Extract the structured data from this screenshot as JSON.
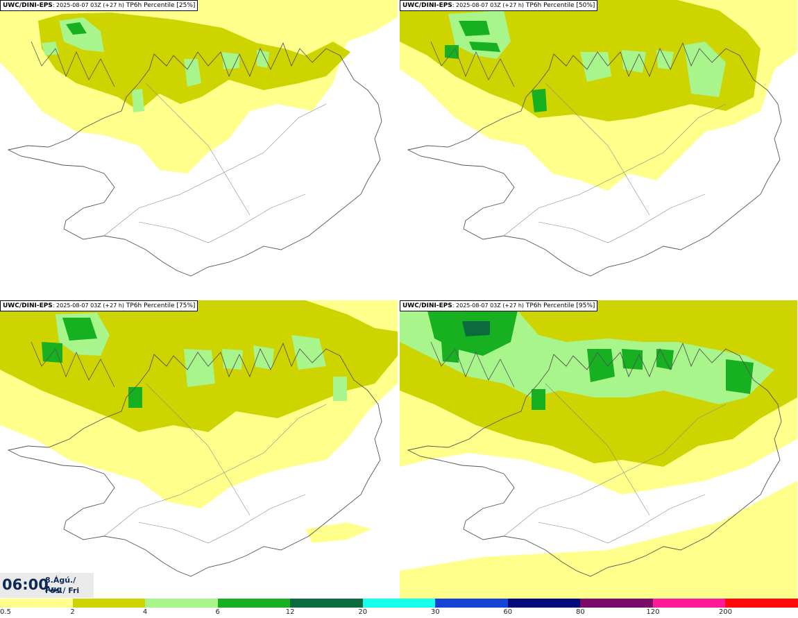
{
  "panels": [
    {
      "source": "UWC/DINI-EPS",
      "run": ": 2025-08-07 03Z (+27 h)",
      "field": "TP6h Percentile [25%]"
    },
    {
      "source": "UWC/DINI-EPS",
      "run": ": 2025-08-07 03Z (+27 h)",
      "field": "TP6h Percentile [50%]"
    },
    {
      "source": "UWC/DINI-EPS",
      "run": ": 2025-08-07 03Z (+27 h)",
      "field": "TP6h Percentile [75%]"
    },
    {
      "source": "UWC/DINI-EPS",
      "run": ": 2025-08-07 03Z (+27 h)",
      "field": "TP6h Percentile [95%]"
    }
  ],
  "valid_time": {
    "time": "06:00",
    "date_line1": "8.Ágú./ Aug",
    "date_line2": "Fös./ Fri"
  },
  "legend": {
    "ticks": [
      "0.5",
      "2",
      "4",
      "6",
      "12",
      "20",
      "30",
      "60",
      "80",
      "120",
      "200"
    ],
    "colors": [
      "#ffff8c",
      "#cdd400",
      "#a8f58c",
      "#16b020",
      "#0b6a3e",
      "#17ffee",
      "#1543d6",
      "#040a7a",
      "#7a0b6b",
      "#ff1a9a",
      "#ff0a0a"
    ]
  },
  "colors": {
    "light_yellow": "#ffff8c",
    "olive": "#cdd400",
    "light_green": "#a8f58c",
    "green": "#16b020",
    "dark_green": "#0b6a3e"
  }
}
